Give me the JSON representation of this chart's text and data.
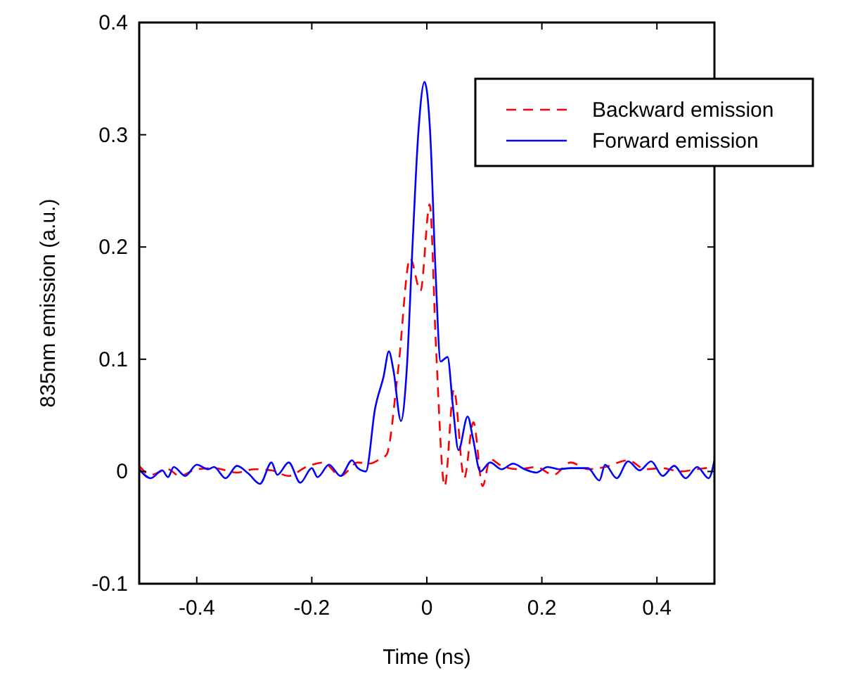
{
  "chart_data": {
    "type": "line",
    "xlabel": "Time (ns)",
    "ylabel": "835nm emission (a.u.)",
    "xlim": [
      -0.5,
      0.5
    ],
    "ylim": [
      -0.1,
      0.4
    ],
    "xticks": [
      -0.4,
      -0.2,
      0,
      0.2,
      0.4
    ],
    "yticks": [
      -0.1,
      0,
      0.1,
      0.2,
      0.3,
      0.4
    ],
    "grid": false,
    "legend": "top right",
    "series": [
      {
        "name": "Backward emission",
        "color": "#ff0000",
        "line_style": "dashed",
        "x": [
          -0.5,
          -0.48,
          -0.45,
          -0.43,
          -0.4,
          -0.37,
          -0.33,
          -0.3,
          -0.27,
          -0.24,
          -0.21,
          -0.18,
          -0.15,
          -0.12,
          -0.1,
          -0.085,
          -0.07,
          -0.05,
          -0.029,
          -0.011,
          0.005,
          0.016,
          0.031,
          0.047,
          0.065,
          0.081,
          0.097,
          0.11,
          0.13,
          0.16,
          0.19,
          0.22,
          0.25,
          0.28,
          0.31,
          0.35,
          0.38,
          0.41,
          0.44,
          0.47,
          0.5
        ],
        "values": [
          0.005,
          -0.003,
          0.002,
          -0.004,
          0.002,
          0.003,
          -0.001,
          0.002,
          0.001,
          -0.004,
          0.004,
          0.008,
          -0.004,
          0.008,
          0.007,
          0.01,
          0.015,
          0.09,
          0.19,
          0.161,
          0.238,
          0.11,
          -0.013,
          0.073,
          -0.006,
          0.044,
          -0.013,
          0.011,
          0.005,
          0.002,
          0.004,
          -0.003,
          0.008,
          0.002,
          0.004,
          0.01,
          0.002,
          0.003,
          0,
          0.002,
          0.004
        ]
      },
      {
        "name": "Forward emission",
        "color": "#0000ff",
        "line_style": "solid",
        "x": [
          -0.5,
          -0.48,
          -0.46,
          -0.45,
          -0.44,
          -0.42,
          -0.4,
          -0.38,
          -0.37,
          -0.35,
          -0.33,
          -0.31,
          -0.29,
          -0.27,
          -0.26,
          -0.24,
          -0.22,
          -0.2,
          -0.19,
          -0.17,
          -0.15,
          -0.13,
          -0.12,
          -0.106,
          -0.09,
          -0.075,
          -0.066,
          -0.058,
          -0.045,
          -0.035,
          -0.025,
          -0.015,
          -0.004,
          0.006,
          0.015,
          0.024,
          0.036,
          0.045,
          0.055,
          0.071,
          0.08,
          0.093,
          0.11,
          0.13,
          0.15,
          0.17,
          0.19,
          0.21,
          0.23,
          0.25,
          0.28,
          0.3,
          0.31,
          0.33,
          0.35,
          0.37,
          0.39,
          0.41,
          0.43,
          0.45,
          0.47,
          0.49,
          0.5
        ],
        "values": [
          0.002,
          -0.006,
          0.001,
          -0.005,
          0.004,
          -0.004,
          0.006,
          0.002,
          0.004,
          -0.006,
          0.005,
          -0.002,
          -0.011,
          0.008,
          -0.003,
          0.008,
          -0.01,
          0.003,
          -0.005,
          0.006,
          -0.004,
          0.01,
          0.003,
          0,
          0.056,
          0.085,
          0.107,
          0.09,
          0.045,
          0.09,
          0.2,
          0.3,
          0.347,
          0.3,
          0.18,
          0.098,
          0.102,
          0.06,
          0.019,
          0.049,
          0.03,
          0,
          0.008,
          0.002,
          0.007,
          0.002,
          -0.001,
          0.004,
          0.002,
          0.003,
          0.003,
          -0.008,
          0.006,
          -0.006,
          0.009,
          0.001,
          0.009,
          -0.004,
          0.005,
          -0.006,
          0.004,
          -0.006,
          0.01
        ]
      }
    ]
  }
}
